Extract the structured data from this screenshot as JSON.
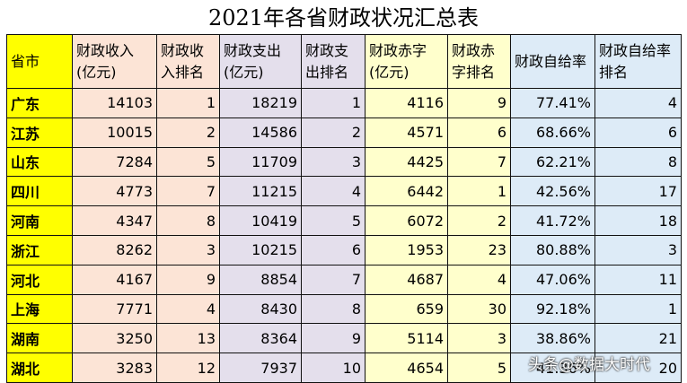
{
  "title": "2021年各省财政状况汇总表",
  "headers": [
    "省市",
    "财政收入(亿元)",
    "财政收入排名",
    "财政支出(亿元)",
    "财政支出排名",
    "财政赤字(亿元)",
    "财政赤字排名",
    "财政自给率",
    "财政自给率排名"
  ],
  "rows": [
    [
      "广东",
      "14103",
      "1",
      "18219",
      "1",
      "4116",
      "9",
      "77.41%",
      "4"
    ],
    [
      "江苏",
      "10015",
      "2",
      "14586",
      "2",
      "4571",
      "6",
      "68.66%",
      "6"
    ],
    [
      "山东",
      "7284",
      "5",
      "11709",
      "3",
      "4425",
      "7",
      "62.21%",
      "8"
    ],
    [
      "四川",
      "4773",
      "7",
      "11215",
      "4",
      "6442",
      "1",
      "42.56%",
      "17"
    ],
    [
      "河南",
      "4347",
      "8",
      "10419",
      "5",
      "6072",
      "2",
      "41.72%",
      "18"
    ],
    [
      "浙江",
      "8262",
      "3",
      "10215",
      "6",
      "1953",
      "23",
      "80.88%",
      "3"
    ],
    [
      "河北",
      "4167",
      "9",
      "8854",
      "7",
      "4687",
      "4",
      "47.06%",
      "11"
    ],
    [
      "上海",
      "7771",
      "4",
      "8430",
      "8",
      "659",
      "30",
      "92.18%",
      "1"
    ],
    [
      "湖南",
      "3250",
      "13",
      "8364",
      "9",
      "5114",
      "3",
      "38.86%",
      "21"
    ],
    [
      "湖北",
      "3283",
      "12",
      "7937",
      "10",
      "4654",
      "5",
      "41.36%",
      "20"
    ]
  ],
  "watermark": "头条@数据大时代",
  "colors": {
    "name": "#ffff00",
    "income": "#fce4d6",
    "expense": "#e4dfec",
    "deficit": "#ffffcc",
    "ratio": "#ddebf7"
  }
}
